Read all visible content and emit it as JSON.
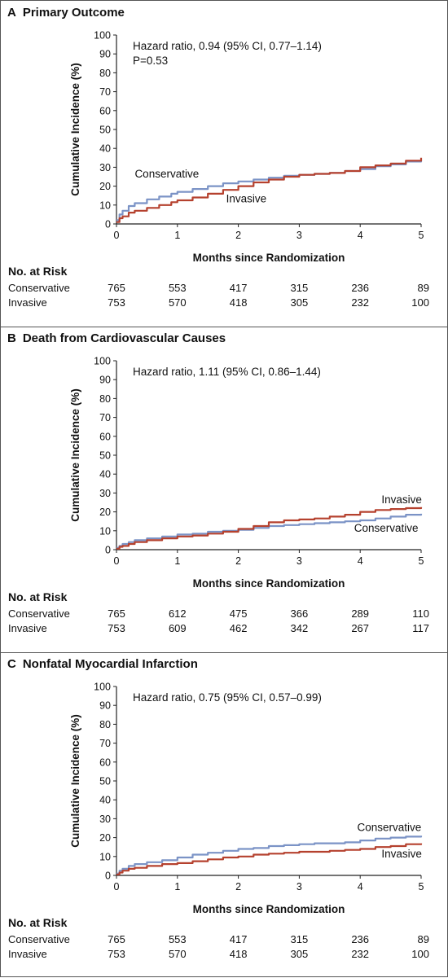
{
  "colors": {
    "conservative": "#7b93c6",
    "invasive": "#b5412e",
    "axis": "#222222"
  },
  "risk_title": "No. at Risk",
  "chart_data": [
    {
      "type": "line",
      "letter": "A",
      "title": "Primary Outcome",
      "xlabel": "Months since Randomization",
      "ylabel": "Cumulative Incidence (%)",
      "xlim": [
        0,
        5
      ],
      "ylim": [
        0,
        100
      ],
      "xticks": [
        "0",
        "1",
        "2",
        "3",
        "4",
        "5"
      ],
      "yticks": [
        "0",
        "10",
        "20",
        "30",
        "40",
        "50",
        "60",
        "70",
        "80",
        "90",
        "100"
      ],
      "annotation_lines": [
        "Hazard ratio, 0.94 (95% CI, 0.77–1.14)",
        "P=0.53"
      ],
      "series": [
        {
          "name": "Conservative",
          "label_at": [
            0.3,
            24.5
          ],
          "x": [
            0,
            0.05,
            0.1,
            0.2,
            0.3,
            0.5,
            0.7,
            0.9,
            1.0,
            1.25,
            1.5,
            1.75,
            2.0,
            2.25,
            2.5,
            2.75,
            3.0,
            3.25,
            3.5,
            3.75,
            4.0,
            4.25,
            4.5,
            4.75,
            5.0
          ],
          "values": [
            2,
            5,
            7,
            9.5,
            11,
            13,
            14.5,
            16,
            17,
            18.5,
            20,
            21.5,
            22.5,
            23.5,
            24.5,
            25.5,
            26,
            26.5,
            27,
            28,
            29,
            30.5,
            31.5,
            33,
            34
          ]
        },
        {
          "name": "Invasive",
          "label_at": [
            1.8,
            11.5
          ],
          "x": [
            0,
            0.05,
            0.1,
            0.2,
            0.3,
            0.5,
            0.7,
            0.9,
            1.0,
            1.25,
            1.5,
            1.75,
            2.0,
            2.25,
            2.5,
            2.75,
            3.0,
            3.25,
            3.5,
            3.75,
            4.0,
            4.25,
            4.5,
            4.75,
            5.0
          ],
          "values": [
            1,
            3,
            4,
            6,
            7,
            8.5,
            10,
            11.5,
            12.5,
            14,
            16,
            18,
            20,
            22,
            23.5,
            25,
            26,
            26.5,
            27,
            28,
            30,
            31,
            32,
            33.5,
            35
          ]
        }
      ],
      "risk": {
        "x": [
          0,
          1,
          2,
          3,
          4,
          5
        ],
        "rows": [
          {
            "name": "Conservative",
            "values": [
              "765",
              "553",
              "417",
              "315",
              "236",
              "89"
            ]
          },
          {
            "name": "Invasive",
            "values": [
              "753",
              "570",
              "418",
              "305",
              "232",
              "100"
            ]
          }
        ]
      }
    },
    {
      "type": "line",
      "letter": "B",
      "title": "Death from Cardiovascular Causes",
      "xlabel": "Months since Randomization",
      "ylabel": "Cumulative Incidence (%)",
      "xlim": [
        0,
        5
      ],
      "ylim": [
        0,
        100
      ],
      "xticks": [
        "0",
        "1",
        "2",
        "3",
        "4",
        "5"
      ],
      "yticks": [
        "0",
        "10",
        "20",
        "30",
        "40",
        "50",
        "60",
        "70",
        "80",
        "90",
        "100"
      ],
      "annotation_lines": [
        "Hazard ratio, 1.11 (95% CI, 0.86–1.44)"
      ],
      "series": [
        {
          "name": "Conservative",
          "label_at": [
            3.9,
            9.5
          ],
          "x": [
            0,
            0.05,
            0.1,
            0.2,
            0.3,
            0.5,
            0.75,
            1.0,
            1.25,
            1.5,
            1.75,
            2.0,
            2.25,
            2.5,
            2.75,
            3.0,
            3.25,
            3.5,
            3.75,
            4.0,
            4.25,
            4.5,
            4.75,
            5.0
          ],
          "values": [
            1,
            2,
            3,
            4,
            5,
            6,
            7,
            8,
            8.5,
            9.5,
            10,
            10.5,
            11.5,
            12.5,
            13,
            13.5,
            14,
            14.5,
            15,
            15.5,
            16.5,
            17.5,
            18.5,
            19
          ]
        },
        {
          "name": "Invasive",
          "label_at": [
            4.35,
            24.5
          ],
          "x": [
            0,
            0.05,
            0.1,
            0.2,
            0.3,
            0.5,
            0.75,
            1.0,
            1.25,
            1.5,
            1.75,
            2.0,
            2.25,
            2.5,
            2.75,
            3.0,
            3.25,
            3.5,
            3.75,
            4.0,
            4.25,
            4.5,
            4.75,
            5.0
          ],
          "values": [
            0.5,
            1.5,
            2,
            3,
            4,
            5,
            6,
            7,
            7.5,
            8.5,
            9.5,
            11,
            12.5,
            14.5,
            15.5,
            16,
            16.5,
            17.5,
            18.5,
            20,
            21,
            21.5,
            22,
            22.5
          ]
        }
      ],
      "risk": {
        "x": [
          0,
          1,
          2,
          3,
          4,
          5
        ],
        "rows": [
          {
            "name": "Conservative",
            "values": [
              "765",
              "612",
              "475",
              "366",
              "289",
              "110"
            ]
          },
          {
            "name": "Invasive",
            "values": [
              "753",
              "609",
              "462",
              "342",
              "267",
              "117"
            ]
          }
        ]
      }
    },
    {
      "type": "line",
      "letter": "C",
      "title": "Nonfatal Myocardial Infarction",
      "xlabel": "Months since Randomization",
      "ylabel": "Cumulative Incidence (%)",
      "xlim": [
        0,
        5
      ],
      "ylim": [
        0,
        100
      ],
      "xticks": [
        "0",
        "1",
        "2",
        "3",
        "4",
        "5"
      ],
      "yticks": [
        "0",
        "10",
        "20",
        "30",
        "40",
        "50",
        "60",
        "70",
        "80",
        "90",
        "100"
      ],
      "annotation_lines": [
        "Hazard ratio, 0.75 (95% CI, 0.57–0.99)"
      ],
      "series": [
        {
          "name": "Conservative",
          "label_at": [
            3.95,
            23.5
          ],
          "x": [
            0,
            0.05,
            0.1,
            0.2,
            0.3,
            0.5,
            0.75,
            1.0,
            1.25,
            1.5,
            1.75,
            2.0,
            2.25,
            2.5,
            2.75,
            3.0,
            3.25,
            3.5,
            3.75,
            4.0,
            4.25,
            4.5,
            4.75,
            5.0
          ],
          "values": [
            1,
            2.5,
            3.5,
            5,
            6,
            7,
            8,
            9.5,
            11,
            12,
            13,
            14,
            14.5,
            15.5,
            16,
            16.5,
            17,
            17,
            17.5,
            18.5,
            19.5,
            20,
            20.5,
            21
          ]
        },
        {
          "name": "Invasive",
          "label_at": [
            4.35,
            9.5
          ],
          "x": [
            0,
            0.05,
            0.1,
            0.2,
            0.3,
            0.5,
            0.75,
            1.0,
            1.25,
            1.5,
            1.75,
            2.0,
            2.25,
            2.5,
            2.75,
            3.0,
            3.25,
            3.5,
            3.75,
            4.0,
            4.25,
            4.5,
            4.75,
            5.0
          ],
          "values": [
            0.5,
            1.5,
            2.5,
            3.5,
            4,
            5,
            6,
            6.5,
            7.5,
            8.5,
            9.5,
            10,
            11,
            11.5,
            12,
            12.5,
            12.5,
            13,
            13.5,
            14,
            15,
            15.5,
            16.5,
            17
          ]
        }
      ],
      "risk": {
        "x": [
          0,
          1,
          2,
          3,
          4,
          5
        ],
        "rows": [
          {
            "name": "Conservative",
            "values": [
              "765",
              "553",
              "417",
              "315",
              "236",
              "89"
            ]
          },
          {
            "name": "Invasive",
            "values": [
              "753",
              "570",
              "418",
              "305",
              "232",
              "100"
            ]
          }
        ]
      }
    }
  ]
}
